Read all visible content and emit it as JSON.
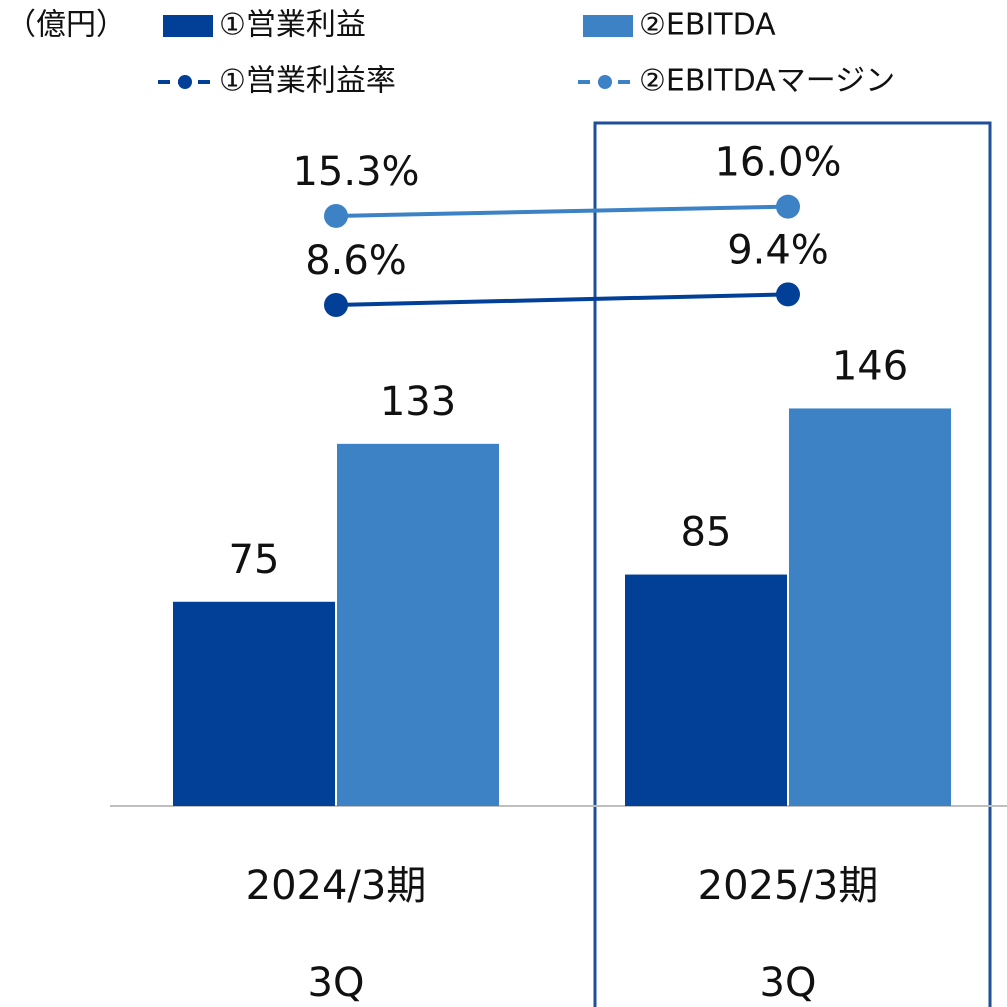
{
  "chart_data": {
    "type": "bar_line",
    "unit_label": "（億円）",
    "categories": [
      [
        "2024/3期",
        "3Q"
      ],
      [
        "2025/3期",
        "3Q"
      ]
    ],
    "series": [
      {
        "name": "①営業利益",
        "type": "bar",
        "color": "#023f96",
        "values": [
          75,
          85
        ]
      },
      {
        "name": "②EBITDA",
        "type": "bar",
        "color": "#3d82c5",
        "values": [
          133,
          146
        ]
      },
      {
        "name": "①営業利益率",
        "type": "line",
        "axis": "y2",
        "color": "#023f96",
        "values": [
          8.6,
          9.4
        ],
        "value_labels": [
          "8.6%",
          "9.4%"
        ]
      },
      {
        "name": "②EBITDAマージン",
        "type": "line",
        "axis": "y2",
        "color": "#3d82c5",
        "values": [
          15.3,
          16.0
        ],
        "value_labels": [
          "15.3%",
          "16.0%"
        ]
      }
    ],
    "ylim": [
      0,
      296
    ],
    "y2lim": [
      -29.1,
      31.55
    ],
    "legend": "top"
  }
}
